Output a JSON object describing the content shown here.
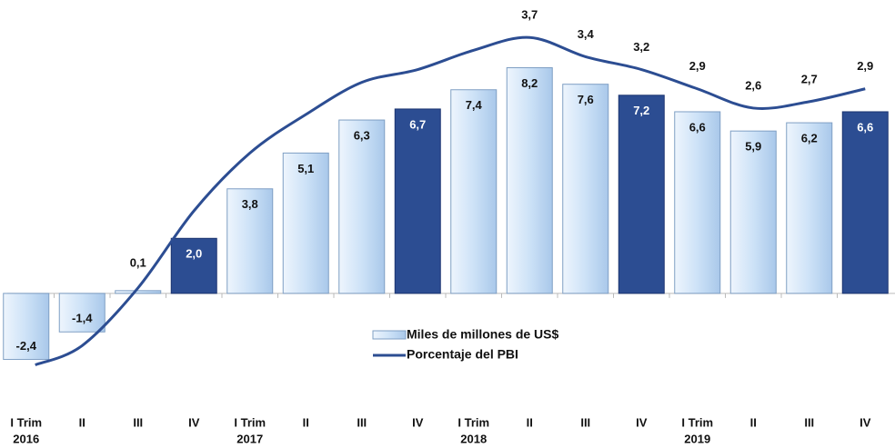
{
  "chart_data": {
    "type": "bar_line",
    "categories": [
      [
        "I Trim",
        "2016"
      ],
      [
        "II"
      ],
      [
        "III"
      ],
      [
        "IV"
      ],
      [
        "I Trim",
        "2017"
      ],
      [
        "II"
      ],
      [
        "III"
      ],
      [
        "IV"
      ],
      [
        "I Trim",
        "2018"
      ],
      [
        "II"
      ],
      [
        "III"
      ],
      [
        "IV"
      ],
      [
        "I Trim",
        "2019"
      ],
      [
        "II"
      ],
      [
        "III"
      ],
      [
        "IV"
      ]
    ],
    "ylim": [
      -4,
      10
    ],
    "y2lim": [
      -2,
      4
    ],
    "series": [
      {
        "name": "Miles de millones de US$",
        "type": "bar",
        "color": "#cde2f7",
        "colors": [
          "#cde2f7",
          "#cde2f7",
          "#cde2f7",
          "#2c4d92",
          "#cde2f7",
          "#cde2f7",
          "#cde2f7",
          "#2c4d92",
          "#cde2f7",
          "#cde2f7",
          "#cde2f7",
          "#2c4d92",
          "#cde2f7",
          "#cde2f7",
          "#cde2f7",
          "#2c4d92"
        ],
        "values": [
          -2.4,
          -1.4,
          0.1,
          2.0,
          3.8,
          5.1,
          6.3,
          6.7,
          7.4,
          8.2,
          7.6,
          7.2,
          6.6,
          5.9,
          6.2,
          6.6
        ],
        "value_labels": [
          "-2,4",
          "-1,4",
          "0,1",
          "2,0",
          "3,8",
          "5,1",
          "6,3",
          "6,7",
          "7,4",
          "8,2",
          "7,6",
          "7,2",
          "6,6",
          "5,9",
          "6,2",
          "6,6"
        ]
      },
      {
        "name": "Porcentaje del PBI",
        "type": "line",
        "axis": "y2",
        "color": "#2c4d92",
        "values": [
          -1.4,
          -1.1,
          -0.2,
          1.0,
          1.9,
          2.5,
          3.0,
          3.2,
          3.5,
          3.7,
          3.4,
          3.2,
          2.9,
          2.6,
          2.7,
          2.9
        ],
        "value_labels": [
          null,
          null,
          null,
          null,
          null,
          null,
          null,
          null,
          null,
          "3,7",
          "3,4",
          "3,2",
          "2,9",
          "2,6",
          "2,7",
          "2,9"
        ]
      }
    ]
  }
}
